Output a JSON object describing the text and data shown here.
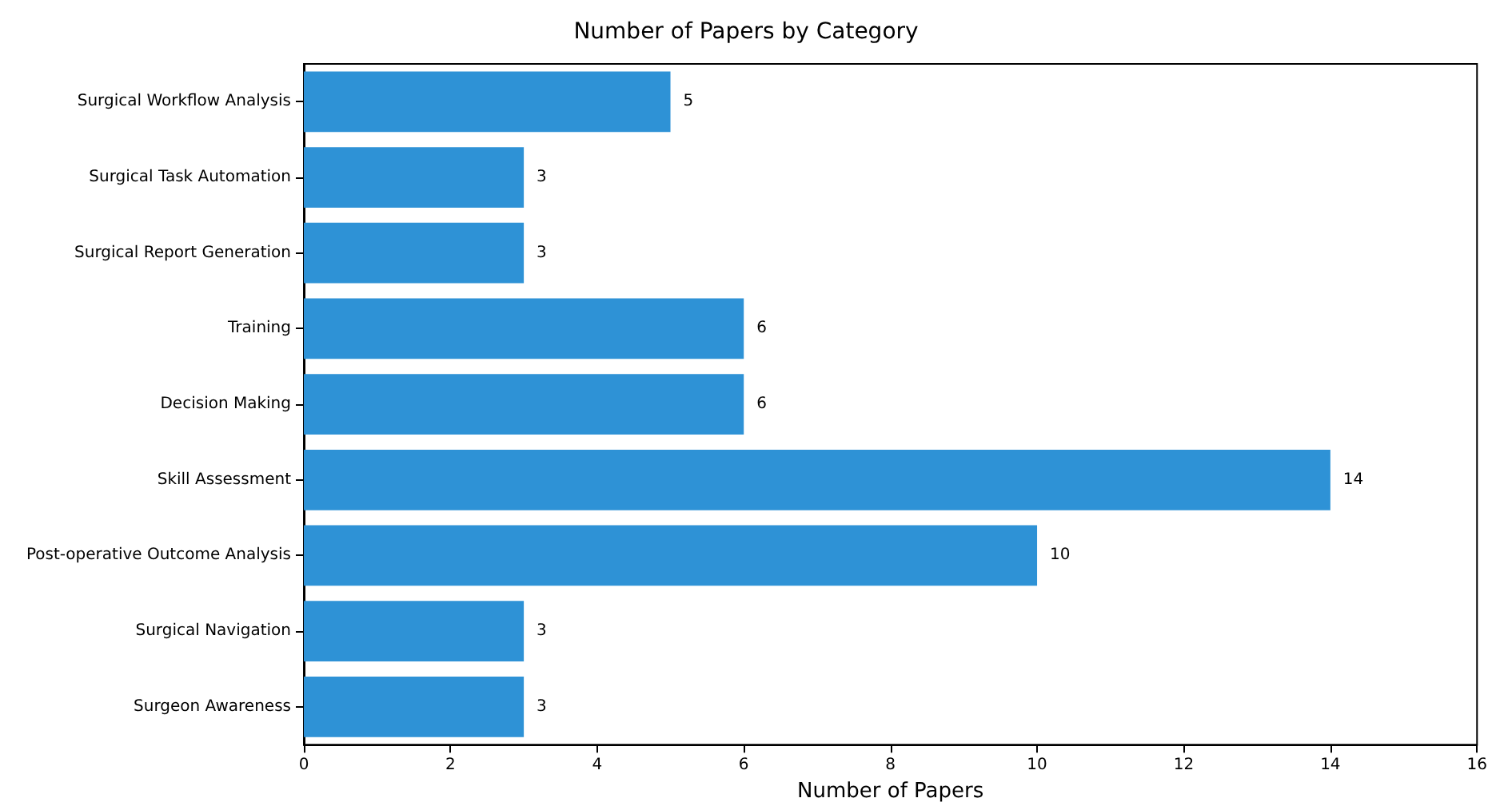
{
  "chart_data": {
    "type": "bar",
    "orientation": "horizontal",
    "title": "Number of Papers by Category",
    "xlabel": "Number of Papers",
    "categories": [
      "Surgical Workflow Analysis",
      "Surgical Task Automation",
      "Surgical Report Generation",
      "Training",
      "Decision Making",
      "Skill Assessment",
      "Post-operative Outcome Analysis",
      "Surgical Navigation",
      "Surgeon Awareness"
    ],
    "values": [
      5,
      3,
      3,
      6,
      6,
      14,
      10,
      3,
      3
    ],
    "color": "#2e92d6",
    "xlim": [
      0,
      16
    ],
    "xticks": [
      0,
      2,
      4,
      6,
      8,
      10,
      12,
      14,
      16
    ],
    "grid": false,
    "data_labels": true
  }
}
